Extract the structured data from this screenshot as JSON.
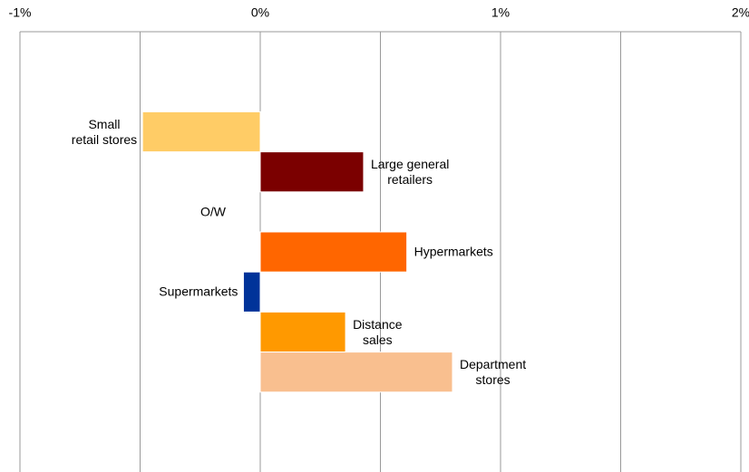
{
  "chart_data": {
    "type": "hbar",
    "categories": [
      "Small\nretail stores",
      "Large general\nretailers",
      "O/W",
      "Hypermarkets",
      "Supermarkets",
      "Distance\nsales",
      "Department\nstores"
    ],
    "values": [
      -0.49,
      0.43,
      null,
      0.61,
      -0.07,
      0.355,
      0.8
    ],
    "colors": [
      "#ffcc66",
      "#7b0000",
      null,
      "#ff6600",
      "#003399",
      "#ff9900",
      "#f9bf8f"
    ],
    "xlim": [
      -1,
      2
    ],
    "xticks": [
      {
        "value": -1,
        "label": "-1%"
      },
      {
        "value": 0,
        "label": "0%"
      },
      {
        "value": 1,
        "label": "1%"
      },
      {
        "value": 2,
        "label": "2%"
      }
    ],
    "xminorticks": [
      -0.5,
      0.5,
      1.5
    ],
    "grid": true
  }
}
